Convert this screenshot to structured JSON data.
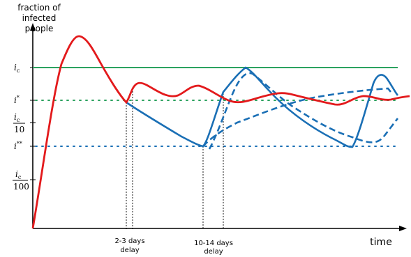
{
  "chart_data": {
    "type": "line",
    "ylabel": [
      "fraction of",
      "infected",
      "people"
    ],
    "xlabel": "time",
    "y_levels": [
      {
        "key": "ic",
        "label": "i",
        "sub": "c",
        "sup": ""
      },
      {
        "key": "istar",
        "label": "i",
        "sub": "",
        "sup": "*"
      },
      {
        "key": "ic10",
        "label": "i",
        "sub": "c",
        "sup": "",
        "denominator": "10"
      },
      {
        "key": "istar2",
        "label": "i",
        "sub": "",
        "sup": "**"
      },
      {
        "key": "ic100",
        "label": "i",
        "sub": "c",
        "sup": "",
        "denominator": "100"
      }
    ],
    "delay_annotations": [
      {
        "line1": "2-3 days",
        "line2": "delay"
      },
      {
        "line1": "10-14 days",
        "line2": "delay"
      }
    ],
    "colors": {
      "threshold": "#2ca25f",
      "infected": "#e31a1c",
      "tested": "#1a6fb5",
      "axis": "#000000"
    },
    "curves": [
      {
        "style": "solid",
        "color": "#e31a1c"
      },
      {
        "style": "solid",
        "color": "#1a6fb5"
      },
      {
        "style": "dashed",
        "color": "#1a6fb5"
      }
    ]
  }
}
